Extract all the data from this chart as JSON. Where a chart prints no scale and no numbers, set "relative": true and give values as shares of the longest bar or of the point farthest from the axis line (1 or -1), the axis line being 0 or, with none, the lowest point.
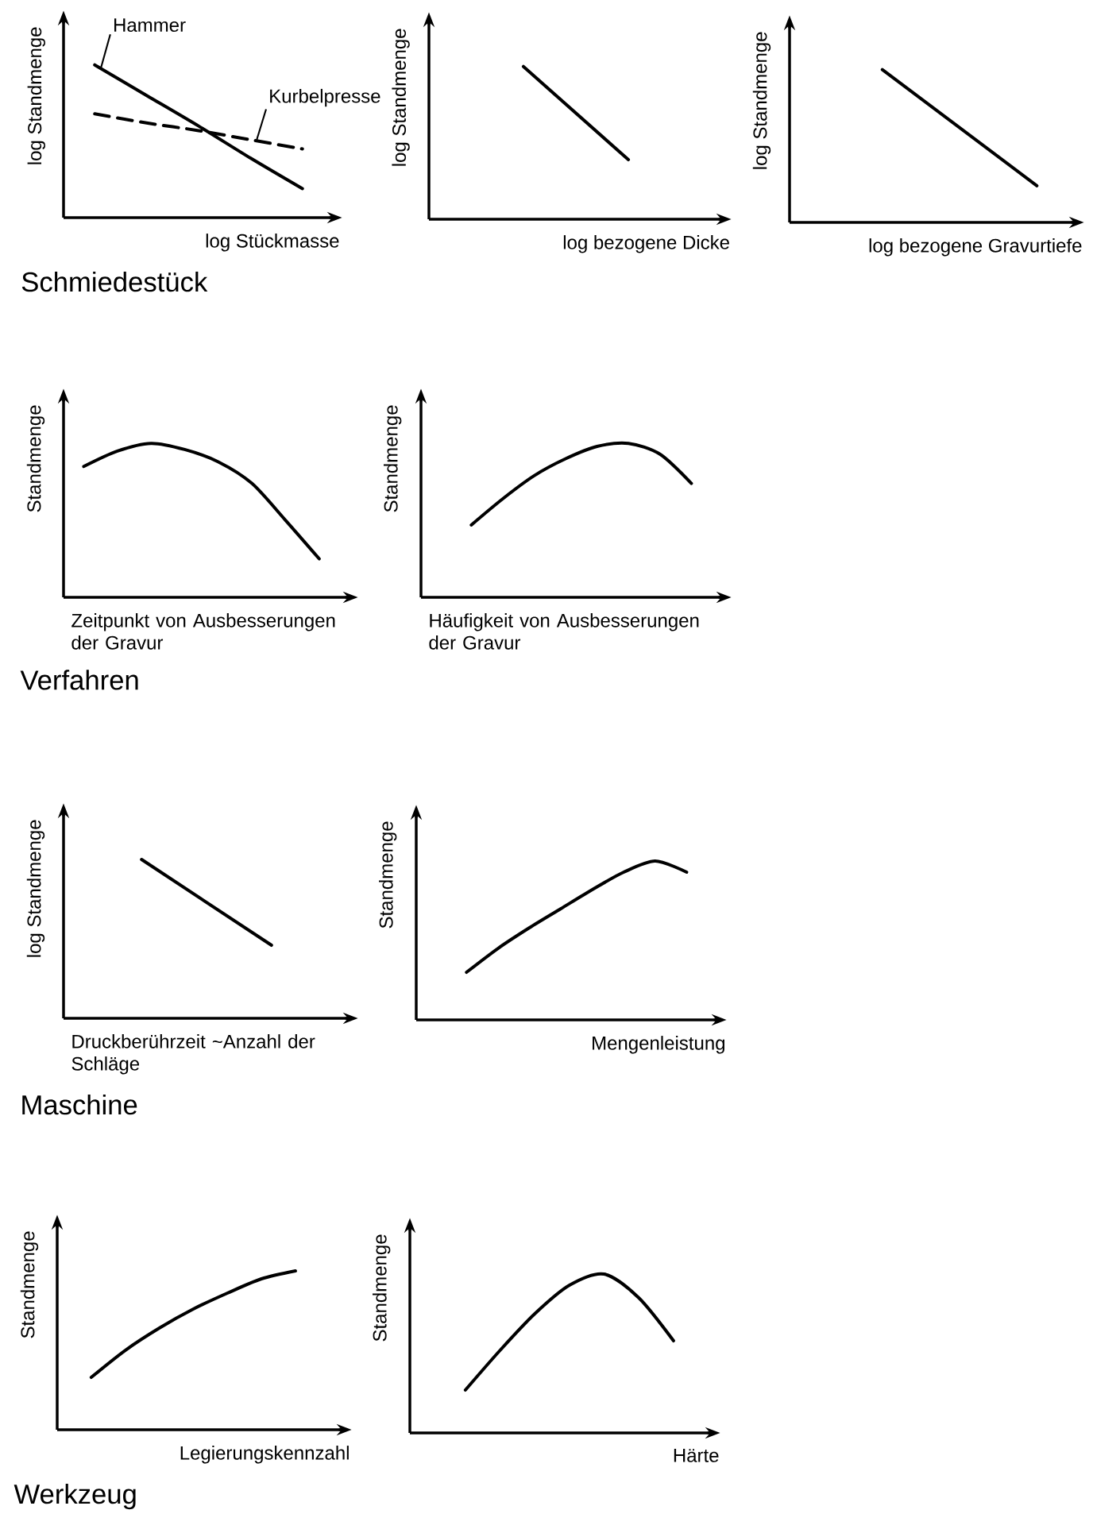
{
  "chart_data": [
    {
      "type": "line",
      "relative": true,
      "ylabel": "log Standmenge",
      "xlabel": "log Stückmasse",
      "annotations": [
        "Schmiedestück"
      ],
      "categories": [
        null,
        null,
        null,
        null,
        null
      ],
      "series": [
        {
          "name": "Hammer",
          "color": "#000000",
          "line_style": "solid",
          "values": [
            1.0,
            0.8,
            0.6,
            0.39,
            0.19
          ]
        },
        {
          "name": "Kurbelpresse",
          "color": "#000000",
          "line_style": "dashed",
          "values": [
            0.68,
            0.62,
            0.57,
            0.51,
            0.45
          ]
        }
      ]
    },
    {
      "type": "line",
      "relative": true,
      "ylabel": "log Standmenge",
      "xlabel": "log bezogene Dicke",
      "categories": [
        null,
        null
      ],
      "series": [
        {
          "color": "#000000",
          "values": [
            1.0,
            0.39
          ]
        }
      ]
    },
    {
      "type": "line",
      "relative": true,
      "ylabel": "log Standmenge",
      "xlabel": "log bezogene Gravurtiefe",
      "categories": [
        null,
        null
      ],
      "series": [
        {
          "color": "#000000",
          "values": [
            1.0,
            0.24
          ]
        }
      ]
    },
    {
      "type": "line",
      "relative": true,
      "ylabel": "Standmenge",
      "xlabel": "Zeitpunkt von Ausbesserungen der Gravur",
      "annotations": [
        "Verfahren"
      ],
      "categories": [
        null,
        null,
        null,
        null,
        null,
        null,
        null,
        null
      ],
      "series": [
        {
          "color": "#000000",
          "values": [
            0.85,
            0.95,
            1.0,
            0.96,
            0.88,
            0.74,
            0.5,
            0.25
          ]
        }
      ]
    },
    {
      "type": "line",
      "relative": true,
      "ylabel": "Standmenge",
      "xlabel": "Häufigkeit von Ausbesserungen der Gravur",
      "categories": [
        null,
        null,
        null,
        null,
        null,
        null,
        null,
        null
      ],
      "series": [
        {
          "color": "#000000",
          "values": [
            0.47,
            0.64,
            0.79,
            0.9,
            0.98,
            1.0,
            0.93,
            0.74
          ]
        }
      ]
    },
    {
      "type": "line",
      "relative": true,
      "ylabel": "log Standmenge",
      "xlabel": "Druckberührzeit ~Anzahl der Schläge",
      "annotations": [
        "Maschine"
      ],
      "categories": [
        null,
        null
      ],
      "series": [
        {
          "color": "#000000",
          "values": [
            1.0,
            0.46
          ]
        }
      ]
    },
    {
      "type": "line",
      "relative": true,
      "ylabel": "Standmenge",
      "xlabel": "Mengenleistung",
      "categories": [
        null,
        null,
        null,
        null,
        null,
        null,
        null,
        null
      ],
      "series": [
        {
          "color": "#000000",
          "values": [
            0.3,
            0.45,
            0.58,
            0.7,
            0.82,
            0.93,
            1.0,
            0.93
          ]
        }
      ]
    },
    {
      "type": "line",
      "relative": true,
      "ylabel": "Standmenge",
      "xlabel": "Legierungskennzahl",
      "annotations": [
        "Werkzeug"
      ],
      "categories": [
        null,
        null,
        null,
        null,
        null,
        null,
        null
      ],
      "series": [
        {
          "color": "#000000",
          "values": [
            0.33,
            0.5,
            0.64,
            0.76,
            0.86,
            0.95,
            1.0
          ]
        }
      ]
    },
    {
      "type": "line",
      "relative": true,
      "ylabel": "Standmenge",
      "xlabel": "Härte",
      "categories": [
        null,
        null,
        null,
        null,
        null,
        null,
        null
      ],
      "series": [
        {
          "color": "#000000",
          "values": [
            0.27,
            0.52,
            0.75,
            0.93,
            1.0,
            0.85,
            0.58
          ]
        }
      ]
    }
  ]
}
